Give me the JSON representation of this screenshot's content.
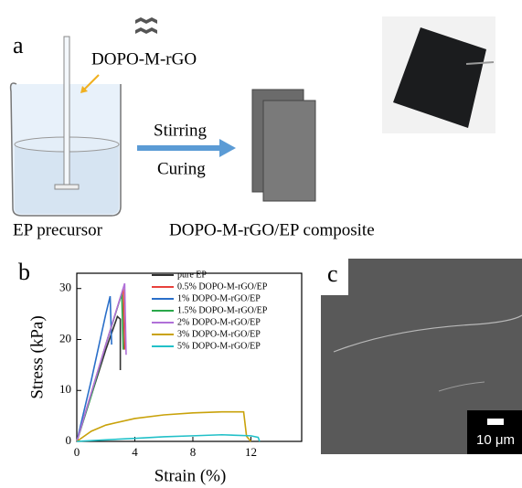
{
  "panel_a": {
    "label": "a",
    "filler_label": "DOPO-M-rGO",
    "step_top": "Stirring",
    "step_bottom": "Curing",
    "left_caption": "EP precursor",
    "right_caption": "DOPO-M-rGO/EP composite"
  },
  "chart_data": {
    "type": "line",
    "panel_label": "b",
    "x_label": "Strain (%)",
    "y_label": "Stress (kPa)",
    "xlim": [
      0,
      15.5
    ],
    "ylim": [
      0,
      33
    ],
    "xticks": [
      0,
      4,
      8,
      12
    ],
    "yticks": [
      0,
      10,
      20,
      30
    ],
    "series": [
      {
        "name": "pure EP",
        "color": "#333333",
        "x": [
          0,
          1,
          2,
          2.8,
          3.0,
          3.0
        ],
        "values": [
          0,
          9,
          18,
          24.5,
          24,
          14
        ]
      },
      {
        "name": "0.5% DOPO-M-rGO/EP",
        "color": "#e8413c",
        "x": [
          0,
          1,
          2,
          3.2,
          3.3
        ],
        "values": [
          0,
          9.5,
          19,
          30,
          18
        ]
      },
      {
        "name": "1% DOPO-M-rGO/EP",
        "color": "#2a6fc9",
        "x": [
          0,
          1,
          2,
          2.3,
          2.4
        ],
        "values": [
          0,
          12,
          25,
          28.5,
          19
        ]
      },
      {
        "name": "1.5% DOPO-M-rGO/EP",
        "color": "#2aa84a",
        "x": [
          0,
          1,
          2,
          3.1,
          3.2
        ],
        "values": [
          0,
          9,
          19,
          29,
          18
        ]
      },
      {
        "name": "2% DOPO-M-rGO/EP",
        "color": "#b070d8",
        "x": [
          0,
          1,
          2,
          3.3,
          3.4
        ],
        "values": [
          0,
          9.5,
          19,
          31,
          17
        ]
      },
      {
        "name": "3% DOPO-M-rGO/EP",
        "color": "#c9a20a",
        "x": [
          0,
          1,
          2,
          4,
          6,
          8,
          10,
          11.5,
          11.7,
          12
        ],
        "values": [
          0,
          2,
          3.2,
          4.5,
          5.2,
          5.6,
          5.8,
          5.8,
          1,
          0
        ]
      },
      {
        "name": "5% DOPO-M-rGO/EP",
        "color": "#22c0c8",
        "x": [
          0,
          2,
          4,
          6,
          8,
          10,
          12,
          12.5,
          12.6
        ],
        "values": [
          0,
          0.3,
          0.6,
          0.9,
          1.1,
          1.3,
          1.1,
          0.8,
          0
        ]
      }
    ]
  },
  "panel_c": {
    "label": "c",
    "scale_bar": "10 μm"
  }
}
